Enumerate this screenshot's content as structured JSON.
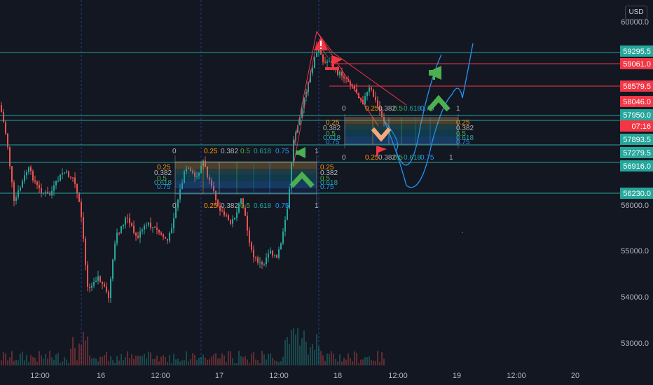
{
  "currency": "USD",
  "colors": {
    "background": "#131722",
    "candle_up": "#26a69a",
    "candle_down": "#ef5350",
    "teal_line": "#26a69a",
    "red_line": "#f23645",
    "blue": "#2962ff",
    "projection": "#2196f3",
    "grid_dash": "#2962ff"
  },
  "price_axis": {
    "ticks": [
      "60000.0",
      "56000.0",
      "55000.0",
      "54000.0",
      "53000.0"
    ],
    "labels": [
      {
        "text": "59295.5",
        "color": "#26a69a"
      },
      {
        "text": "59061.0",
        "color": "#f23645"
      },
      {
        "text": "58579.5",
        "color": "#f23645"
      },
      {
        "text": "58046.0",
        "color": "#f23645"
      },
      {
        "text": "57950.0",
        "color": "#26a69a"
      },
      {
        "text": "07:16",
        "color": "#f23645"
      },
      {
        "text": "57893.5",
        "color": "#26a69a"
      },
      {
        "text": "57279.5",
        "color": "#26a69a"
      },
      {
        "text": "56916.0",
        "color": "#26a69a"
      },
      {
        "text": "56230.0",
        "color": "#26a69a"
      }
    ]
  },
  "time_axis": [
    "12:00",
    "16",
    "12:00",
    "17",
    "12:00",
    "18",
    "12:00",
    "19",
    "12:00",
    "20"
  ],
  "fib_levels": {
    "zero": "0",
    "one": "1",
    "v025": "0.25",
    "v0382": "0.382",
    "v05": "0.5",
    "v0618": "0.618",
    "v075": "0.75"
  },
  "icons": [
    "warning-icon",
    "flag-icon",
    "megaphone-icon",
    "chevron-up-icon",
    "chevron-down-icon"
  ]
}
